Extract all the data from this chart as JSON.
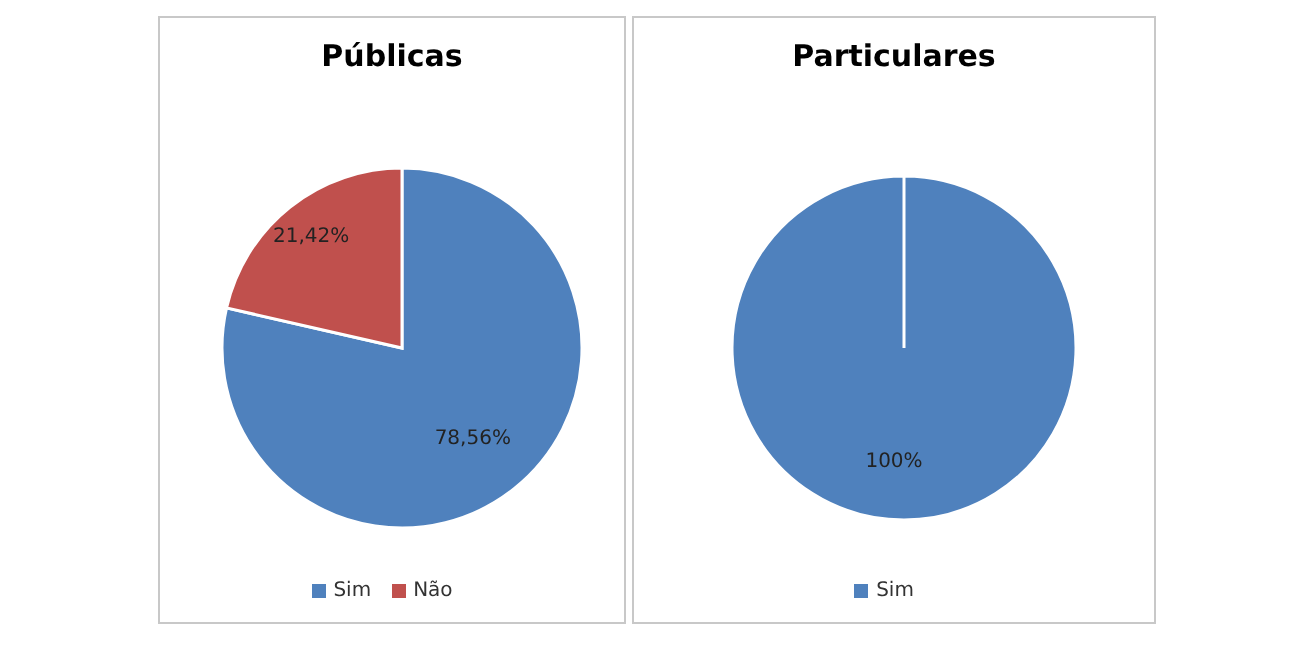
{
  "chart_data": [
    {
      "type": "pie",
      "title": "Públicas",
      "categories": [
        "Sim",
        "Não"
      ],
      "values": [
        78.56,
        21.42
      ],
      "colors": [
        "#4f81bd",
        "#c0504d"
      ],
      "value_labels": [
        "78,56%",
        "21,42%"
      ],
      "legend": "bottom"
    },
    {
      "type": "pie",
      "title": "Particulares",
      "categories": [
        "Sim"
      ],
      "values": [
        100
      ],
      "colors": [
        "#4f81bd"
      ],
      "value_labels": [
        "100%"
      ],
      "legend": "bottom"
    }
  ]
}
